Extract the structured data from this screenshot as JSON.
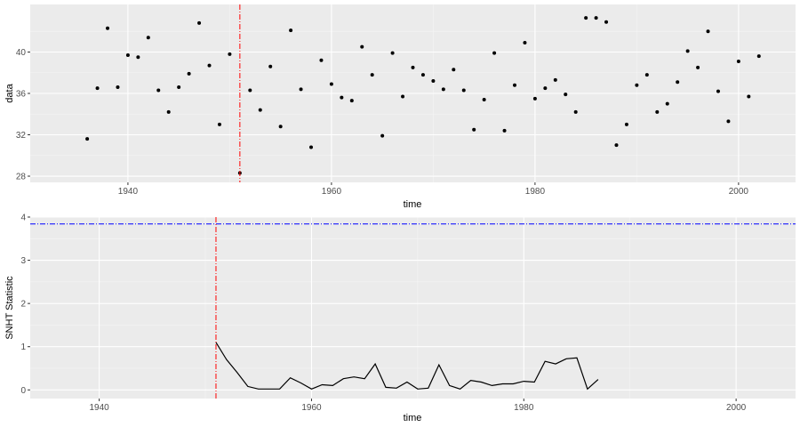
{
  "colors": {
    "points": "#000000",
    "line": "#000000",
    "changepoint_line": "#ff0000",
    "threshold_line": "#0000ff",
    "panel_background": "#ebebeb",
    "grid": "#ffffff"
  },
  "chart_data": [
    {
      "type": "scatter",
      "title": "",
      "xlabel": "time",
      "ylabel": "data",
      "xlim": [
        1930.4,
        2005.6
      ],
      "ylim": [
        27.4,
        44.6
      ],
      "xticks": [
        1940,
        1960,
        1980,
        2000
      ],
      "yticks": [
        28,
        32,
        36,
        40
      ],
      "grid": true,
      "changepoint_x": 1951,
      "x": [
        1936,
        1937,
        1938,
        1939,
        1940,
        1941,
        1942,
        1943,
        1944,
        1945,
        1946,
        1947,
        1948,
        1949,
        1950,
        1951,
        1952,
        1953,
        1954,
        1955,
        1956,
        1957,
        1958,
        1959,
        1960,
        1961,
        1962,
        1963,
        1964,
        1965,
        1966,
        1967,
        1968,
        1969,
        1970,
        1971,
        1972,
        1973,
        1974,
        1975,
        1976,
        1977,
        1978,
        1979,
        1980,
        1981,
        1982,
        1983,
        1984,
        1985,
        1986,
        1987,
        1988,
        1989,
        1990,
        1991,
        1992,
        1993,
        1994,
        1995,
        1996,
        1997,
        1998,
        1999,
        2000,
        2001,
        2002
      ],
      "y": [
        31.6,
        36.5,
        42.3,
        36.6,
        39.7,
        39.5,
        41.4,
        36.3,
        34.2,
        36.6,
        37.9,
        42.8,
        38.7,
        33.0,
        39.8,
        28.3,
        36.3,
        34.4,
        38.6,
        32.8,
        42.1,
        36.4,
        30.8,
        39.2,
        36.9,
        35.6,
        35.3,
        40.5,
        37.8,
        31.9,
        39.9,
        35.7,
        38.5,
        37.8,
        37.2,
        36.4,
        38.3,
        36.3,
        32.5,
        35.4,
        39.9,
        32.4,
        36.8,
        40.9,
        35.5,
        36.5,
        37.3,
        35.9,
        34.2,
        43.3,
        43.3,
        42.9,
        31.0,
        33.0,
        36.8,
        37.8,
        34.2,
        35.0,
        37.1,
        40.1,
        38.5,
        42.0,
        36.2,
        33.3,
        39.1,
        35.7,
        39.6
      ]
    },
    {
      "type": "line",
      "title": "",
      "xlabel": "time",
      "ylabel": "SNHT Statistic",
      "xlim": [
        1933.5,
        2005.6
      ],
      "ylim": [
        -0.2,
        4.0
      ],
      "xticks": [
        1940,
        1960,
        1980,
        2000
      ],
      "yticks": [
        0,
        1,
        2,
        3,
        4
      ],
      "grid": true,
      "changepoint_x": 1951,
      "threshold_y": 3.84,
      "x": [
        1951,
        1952,
        1953,
        1954,
        1955,
        1956,
        1957,
        1958,
        1959,
        1960,
        1961,
        1962,
        1963,
        1964,
        1965,
        1966,
        1967,
        1968,
        1969,
        1970,
        1971,
        1972,
        1973,
        1974,
        1975,
        1976,
        1977,
        1978,
        1979,
        1980,
        1981,
        1982,
        1983,
        1984,
        1985,
        1986,
        1987
      ],
      "y": [
        1.1,
        0.7,
        0.4,
        0.08,
        0.02,
        0.02,
        0.02,
        0.28,
        0.16,
        0.02,
        0.12,
        0.1,
        0.26,
        0.3,
        0.26,
        0.6,
        0.06,
        0.04,
        0.18,
        0.02,
        0.04,
        0.58,
        0.1,
        0.02,
        0.22,
        0.18,
        0.1,
        0.14,
        0.14,
        0.2,
        0.18,
        0.66,
        0.6,
        0.72,
        0.74,
        0.02,
        0.24
      ]
    }
  ]
}
